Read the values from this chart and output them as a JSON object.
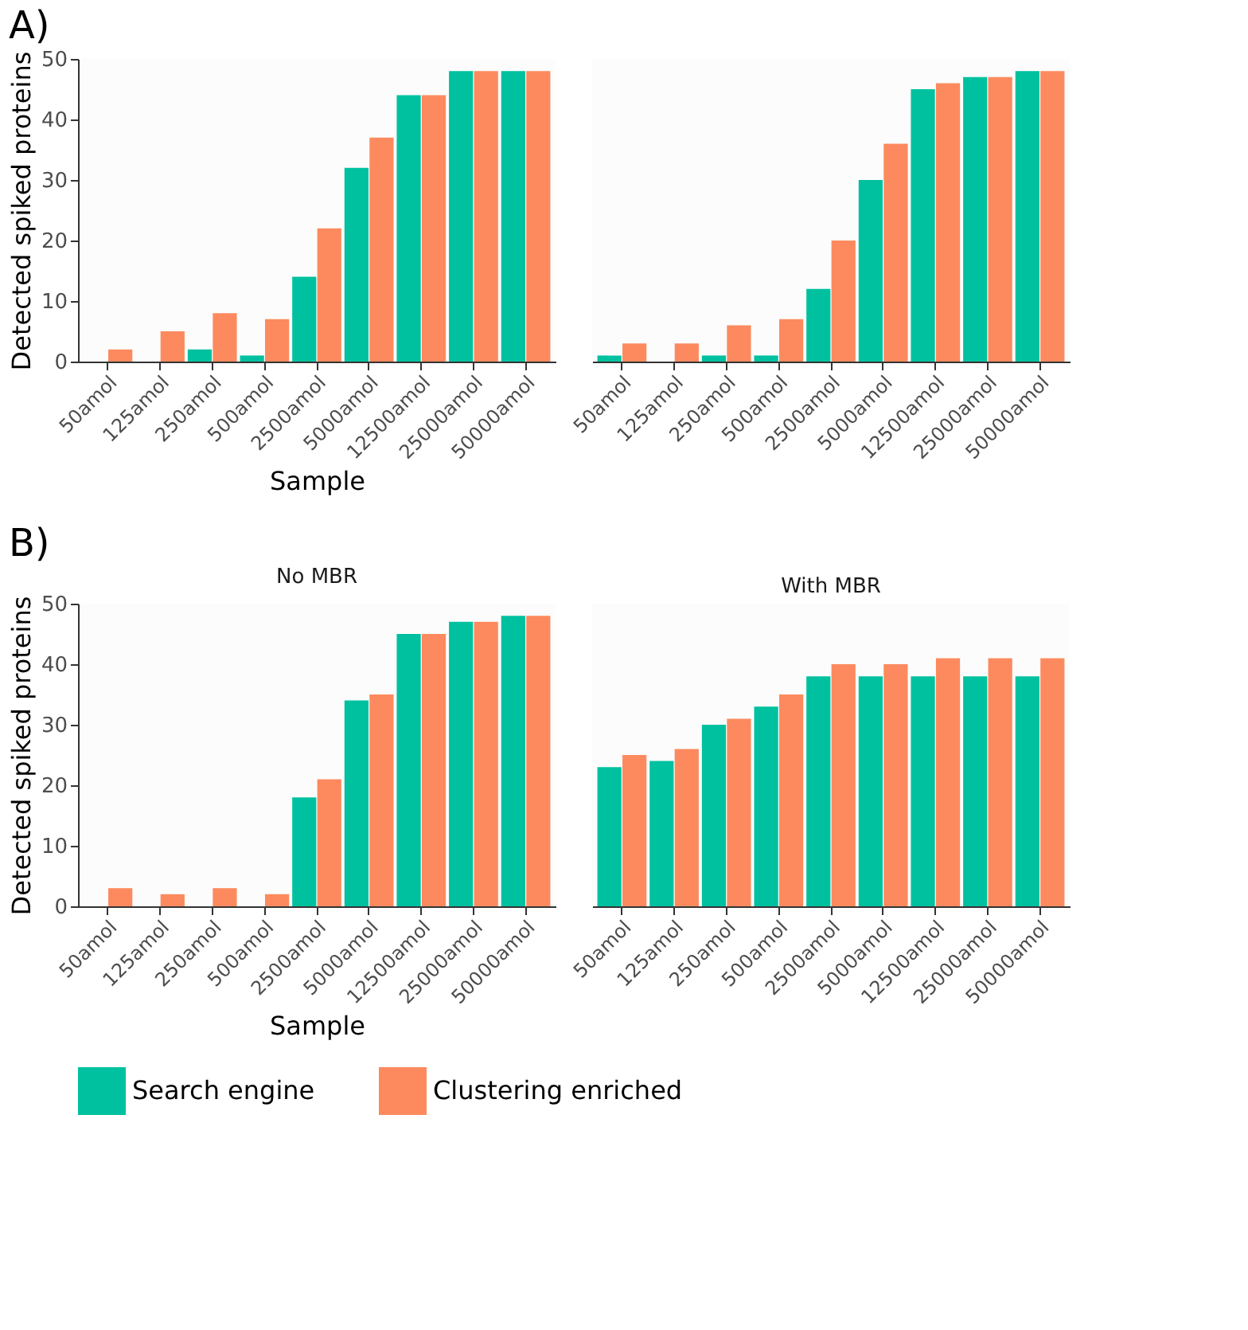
{
  "chart_data": [
    {
      "type": "bar",
      "annotations": [
        "A)"
      ],
      "ylabel": "Detected spiked proteins",
      "xlabel": "Sample",
      "categories": [
        "50amol",
        "125amol",
        "250amol",
        "500amol",
        "2500amol",
        "5000amol",
        "12500amol",
        "25000amol",
        "50000amol"
      ],
      "ylim": [
        0,
        50
      ],
      "yticks": [
        0,
        10,
        20,
        30,
        40,
        50
      ],
      "grid": false,
      "legend": "bottom",
      "series": [
        {
          "name": "Search engine",
          "color": "#00c19f",
          "values": [
            0,
            0,
            2,
            1,
            14,
            32,
            44,
            48,
            48
          ]
        },
        {
          "name": "Clustering enriched",
          "color": "#fc8a5e",
          "values": [
            2,
            5,
            8,
            7,
            22,
            37,
            44,
            48,
            48
          ]
        }
      ]
    },
    {
      "type": "bar",
      "categories": [
        "50amol",
        "125amol",
        "250amol",
        "500amol",
        "2500amol",
        "5000amol",
        "12500amol",
        "25000amol",
        "50000amol"
      ],
      "ylim": [
        0,
        50
      ],
      "yticks": [
        0,
        10,
        20,
        30,
        40,
        50
      ],
      "tick_labels": "x",
      "grid": false,
      "legend": "bottom",
      "series": [
        {
          "name": "Search engine",
          "color": "#00c19f",
          "values": [
            1,
            0,
            1,
            1,
            12,
            30,
            45,
            47,
            48
          ]
        },
        {
          "name": "Clustering enriched",
          "color": "#fc8a5e",
          "values": [
            3,
            3,
            6,
            7,
            20,
            36,
            46,
            47,
            48
          ]
        }
      ]
    },
    {
      "type": "bar",
      "annotations": [
        "B)"
      ],
      "title": "No MBR",
      "ylabel": "Detected spiked proteins",
      "xlabel": "Sample",
      "categories": [
        "50amol",
        "125amol",
        "250amol",
        "500amol",
        "2500amol",
        "5000amol",
        "12500amol",
        "25000amol",
        "50000amol"
      ],
      "ylim": [
        0,
        50
      ],
      "yticks": [
        0,
        10,
        20,
        30,
        40,
        50
      ],
      "grid": false,
      "legend": "bottom",
      "series": [
        {
          "name": "Search engine",
          "color": "#00c19f",
          "values": [
            0,
            0,
            0,
            0,
            18,
            34,
            45,
            47,
            48
          ]
        },
        {
          "name": "Clustering enriched",
          "color": "#fc8a5e",
          "values": [
            3,
            2,
            3,
            2,
            21,
            35,
            45,
            47,
            48
          ]
        }
      ]
    },
    {
      "type": "bar",
      "title": "With MBR",
      "categories": [
        "50amol",
        "125amol",
        "250amol",
        "500amol",
        "2500amol",
        "5000amol",
        "12500amol",
        "25000amol",
        "50000amol"
      ],
      "ylim": [
        0,
        50
      ],
      "yticks": [
        0,
        10,
        20,
        30,
        40,
        50
      ],
      "tick_labels": "x",
      "grid": false,
      "legend": "bottom",
      "series": [
        {
          "name": "Search engine",
          "color": "#00c19f",
          "values": [
            23,
            24,
            30,
            33,
            38,
            38,
            38,
            38,
            38
          ]
        },
        {
          "name": "Clustering enriched",
          "color": "#fc8a5e",
          "values": [
            25,
            26,
            31,
            35,
            40,
            40,
            41,
            41,
            41
          ]
        }
      ]
    }
  ]
}
